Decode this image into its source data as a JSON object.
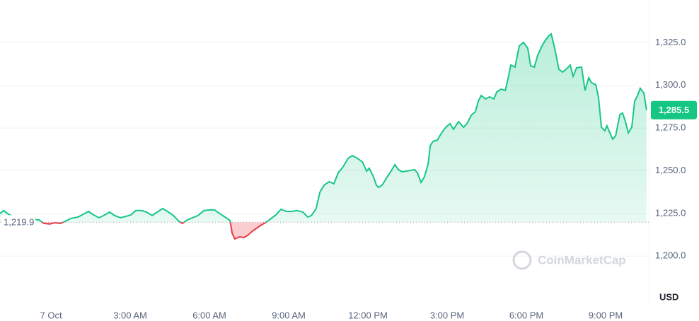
{
  "chart_data": {
    "type": "line",
    "x": [
      -1.93,
      -1.79,
      -1.61,
      -1.39,
      -1.13,
      -0.86,
      -0.46,
      -0.27,
      -0.05,
      0.16,
      0.35,
      0.54,
      0.75,
      1.02,
      1.23,
      1.42,
      1.61,
      1.82,
      2.04,
      2.22,
      2.41,
      2.63,
      2.84,
      3.03,
      3.21,
      3.43,
      3.62,
      3.83,
      4.02,
      4.23,
      4.45,
      4.63,
      4.85,
      4.98,
      5.17,
      5.36,
      5.57,
      5.79,
      6.0,
      6.19,
      6.38,
      6.59,
      6.78,
      6.86,
      6.96,
      7.13,
      7.31,
      7.45,
      7.63,
      7.82,
      7.98,
      8.12,
      8.3,
      8.52,
      8.71,
      8.92,
      9.11,
      9.32,
      9.54,
      9.72,
      9.86,
      10.04,
      10.18,
      10.34,
      10.53,
      10.71,
      10.88,
      11.06,
      11.25,
      11.41,
      11.6,
      11.79,
      11.95,
      12.05,
      12.21,
      12.32,
      12.4,
      12.54,
      12.7,
      12.86,
      13.02,
      13.15,
      13.29,
      13.45,
      13.61,
      13.77,
      13.88,
      14.01,
      14.14,
      14.28,
      14.36,
      14.46,
      14.63,
      14.79,
      14.95,
      15.11,
      15.24,
      15.43,
      15.62,
      15.75,
      15.91,
      16.07,
      16.18,
      16.29,
      16.45,
      16.61,
      16.77,
      16.88,
      17.04,
      17.2,
      17.3,
      17.41,
      17.57,
      17.73,
      17.89,
      18.05,
      18.16,
      18.3,
      18.43,
      18.59,
      18.7,
      18.86,
      18.94,
      19.07,
      19.23,
      19.37,
      19.5,
      19.66,
      19.77,
      19.9,
      20.09,
      20.22,
      20.36,
      20.46,
      20.63,
      20.73,
      20.84,
      20.97,
      21.05,
      21.16,
      21.27,
      21.38,
      21.54,
      21.64,
      21.75,
      21.86,
      21.99,
      22.1,
      22.21,
      22.31,
      22.45,
      22.55
    ],
    "series": [
      {
        "name": "USD",
        "color": "#16c784",
        "below_color": "#ea3943",
        "values": [
          1225.0,
          1226.7,
          1224.6,
          1222.9,
          1222.1,
          1221.7,
          1221.3,
          1219.2,
          1218.8,
          1219.6,
          1219.2,
          1220.4,
          1222.1,
          1222.9,
          1224.6,
          1226.2,
          1224.2,
          1222.5,
          1224.2,
          1225.8,
          1223.8,
          1222.5,
          1223.3,
          1224.2,
          1226.7,
          1226.7,
          1225.8,
          1223.8,
          1225.8,
          1227.9,
          1225.8,
          1223.8,
          1220.4,
          1219.2,
          1221.3,
          1222.5,
          1223.8,
          1226.7,
          1227.1,
          1227.1,
          1225.0,
          1222.9,
          1220.9,
          1213.4,
          1210.1,
          1211.3,
          1210.9,
          1212.2,
          1214.7,
          1216.7,
          1218.4,
          1219.6,
          1221.7,
          1224.2,
          1227.5,
          1226.2,
          1226.2,
          1226.7,
          1225.8,
          1222.9,
          1223.8,
          1227.9,
          1237.4,
          1241.6,
          1243.6,
          1242.4,
          1249.0,
          1252.3,
          1257.3,
          1258.9,
          1257.3,
          1255.2,
          1249.8,
          1251.5,
          1246.5,
          1241.6,
          1240.3,
          1241.6,
          1245.7,
          1249.4,
          1253.6,
          1250.7,
          1249.4,
          1249.8,
          1250.2,
          1250.7,
          1248.6,
          1243.2,
          1246.5,
          1254.0,
          1264.7,
          1267.2,
          1268.0,
          1272.2,
          1275.5,
          1277.6,
          1274.3,
          1278.8,
          1275.5,
          1277.6,
          1282.5,
          1284.6,
          1290.8,
          1294.1,
          1292.1,
          1293.3,
          1292.1,
          1296.2,
          1297.8,
          1297.0,
          1303.6,
          1311.9,
          1310.7,
          1323.1,
          1325.2,
          1321.9,
          1311.5,
          1310.7,
          1317.7,
          1323.1,
          1326.0,
          1329.3,
          1330.1,
          1321.9,
          1309.4,
          1307.8,
          1309.4,
          1311.9,
          1305.3,
          1310.3,
          1310.7,
          1297.0,
          1304.5,
          1301.6,
          1300.3,
          1292.9,
          1275.5,
          1273.4,
          1276.3,
          1272.2,
          1268.5,
          1270.5,
          1282.9,
          1283.8,
          1278.8,
          1272.2,
          1275.5,
          1290.8,
          1294.1,
          1298.3,
          1295.4,
          1285.5
        ]
      }
    ],
    "baseline": {
      "value": 1219.9,
      "label": "1,219.9"
    },
    "current": {
      "value": 1285.5,
      "label": "1,285.5"
    },
    "xlim": [
      -1.93,
      22.66
    ],
    "xticks": [
      {
        "value": 0,
        "label": "7 Oct"
      },
      {
        "value": 3,
        "label": "3:00 AM"
      },
      {
        "value": 6,
        "label": "6:00 AM"
      },
      {
        "value": 9,
        "label": "9:00 AM"
      },
      {
        "value": 12,
        "label": "12:00 PM"
      },
      {
        "value": 15,
        "label": "3:00 PM"
      },
      {
        "value": 18,
        "label": "6:00 PM"
      },
      {
        "value": 21,
        "label": "9:00 PM"
      }
    ],
    "ylim": [
      1172.8,
      1350
    ],
    "yticks": [
      {
        "value": 1200,
        "label": "1,200.0"
      },
      {
        "value": 1225,
        "label": "1,225.0"
      },
      {
        "value": 1250,
        "label": "1,250.0"
      },
      {
        "value": 1275,
        "label": "1,275.0"
      },
      {
        "value": 1300,
        "label": "1,300.0"
      },
      {
        "value": 1325,
        "label": "1,325.0"
      }
    ],
    "y_axis_label": "USD",
    "watermark": "CoinMarketCap",
    "grid": true
  }
}
